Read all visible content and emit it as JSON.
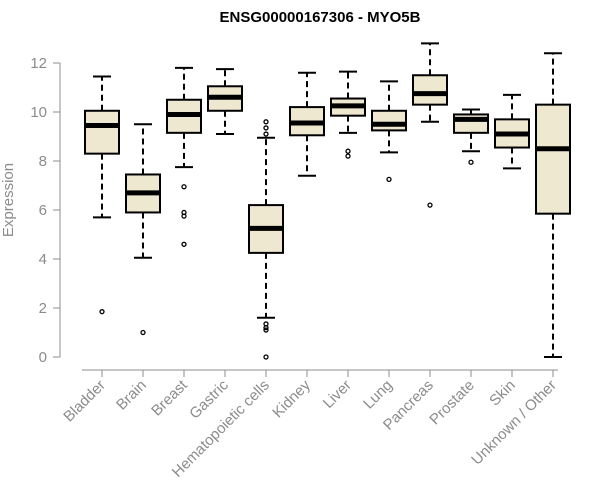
{
  "chart_data": {
    "type": "boxplot",
    "title": "ENSG00000167306 - MYO5B",
    "xlabel": "",
    "ylabel": "Expression",
    "ylim": [
      0,
      12.5
    ],
    "yticks": [
      0,
      2,
      4,
      6,
      8,
      10,
      12
    ],
    "categories": [
      "Bladder",
      "Brain",
      "Breast",
      "Gastric",
      "Hematopoietic cells",
      "Kidney",
      "Liver",
      "Lung",
      "Pancreas",
      "Prostate",
      "Skin",
      "Unknown / Other"
    ],
    "boxes": [
      {
        "min": 5.7,
        "q1": 8.3,
        "median": 9.45,
        "q3": 10.05,
        "max": 11.45,
        "outliers": [
          1.85
        ]
      },
      {
        "min": 4.05,
        "q1": 5.9,
        "median": 6.7,
        "q3": 7.45,
        "max": 9.5,
        "outliers": [
          1.0
        ]
      },
      {
        "min": 7.75,
        "q1": 9.15,
        "median": 9.9,
        "q3": 10.5,
        "max": 11.8,
        "outliers": [
          6.95,
          5.9,
          5.75,
          4.6
        ]
      },
      {
        "min": 9.1,
        "q1": 10.05,
        "median": 10.6,
        "q3": 11.05,
        "max": 11.75,
        "outliers": []
      },
      {
        "min": 1.6,
        "q1": 4.25,
        "median": 5.25,
        "q3": 6.2,
        "max": 8.95,
        "outliers": [
          9.6,
          9.35,
          9.1,
          1.35,
          1.2,
          1.1,
          0.0
        ]
      },
      {
        "min": 7.4,
        "q1": 9.05,
        "median": 9.55,
        "q3": 10.2,
        "max": 11.6,
        "outliers": []
      },
      {
        "min": 9.15,
        "q1": 9.85,
        "median": 10.25,
        "q3": 10.55,
        "max": 11.65,
        "outliers": [
          8.4,
          8.2
        ]
      },
      {
        "min": 8.35,
        "q1": 9.25,
        "median": 9.5,
        "q3": 10.05,
        "max": 11.25,
        "outliers": [
          7.25
        ]
      },
      {
        "min": 9.6,
        "q1": 10.3,
        "median": 10.75,
        "q3": 11.5,
        "max": 12.8,
        "outliers": [
          6.2
        ]
      },
      {
        "min": 8.4,
        "q1": 9.15,
        "median": 9.7,
        "q3": 9.9,
        "max": 10.1,
        "outliers": [
          7.95
        ]
      },
      {
        "min": 7.7,
        "q1": 8.55,
        "median": 9.1,
        "q3": 9.7,
        "max": 10.7,
        "outliers": []
      },
      {
        "min": 0.0,
        "q1": 5.85,
        "median": 8.5,
        "q3": 10.3,
        "max": 12.4,
        "outliers": []
      }
    ],
    "colors": {
      "box_fill": "#efe8d1",
      "stroke": "#000000",
      "axis": "#8c8c8c",
      "text": "#8c8c8c",
      "title": "#000000"
    },
    "grid": false,
    "legend": "none"
  }
}
